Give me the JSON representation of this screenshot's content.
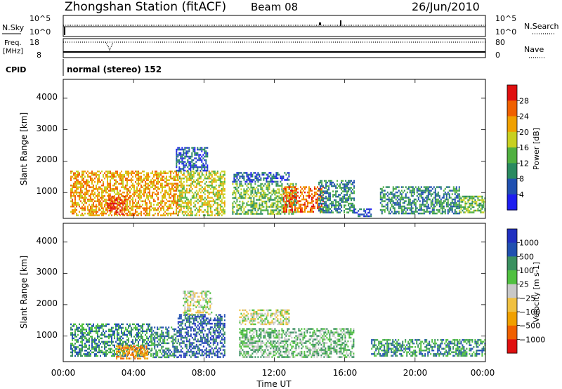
{
  "header": {
    "station": "Zhongshan Station (fitACF)",
    "beam": "Beam 08",
    "date": "26/Jun/2010"
  },
  "status_panels": {
    "nsky_label": "N.Sky",
    "nsearch_label": "N.Search",
    "freq_label_line1": "Freq.",
    "freq_label_line2": "[MHz]",
    "nave_label": "Nave",
    "cpid_label": "CPID",
    "cpid_text": "normal (stereo) 152",
    "nsky_ticks": [
      "10^5",
      "10^0"
    ],
    "nsearch_ticks": [
      "10^5",
      "10^0"
    ],
    "freq_ticks": [
      "18",
      "8"
    ],
    "nave_ticks": [
      "80",
      "0"
    ]
  },
  "axes": {
    "xlabel": "Time UT",
    "x_ticks": [
      "00:00",
      "04:00",
      "08:00",
      "12:00",
      "16:00",
      "20:00",
      "00:00"
    ],
    "ylabel": "Slant Range [km]",
    "y_ticks": [
      "4000",
      "3000",
      "2000",
      "1000"
    ]
  },
  "chart_data": [
    {
      "type": "heatmap",
      "title": "",
      "xlabel": "",
      "ylabel": "Slant Range [km]",
      "x_unit": "hours UT",
      "xlim": [
        0,
        24
      ],
      "ylim": [
        180,
        4600
      ],
      "colorbar": {
        "label": "Power [dB]",
        "ticks": [
          "28",
          "24",
          "20",
          "16",
          "12",
          "8",
          "4"
        ],
        "colors": [
          "#1e1ef0",
          "#2050b0",
          "#2a8a60",
          "#50b040",
          "#c8d020",
          "#f0a000",
          "#f06000",
          "#e01010"
        ]
      },
      "regions": [
        {
          "x0": 0.4,
          "x1": 6.5,
          "y0": 300,
          "y1": 1700,
          "level": 5
        },
        {
          "x0": 2.5,
          "x1": 3.5,
          "y0": 300,
          "y1": 900,
          "level": 7
        },
        {
          "x0": 6.5,
          "x1": 9.2,
          "y0": 300,
          "y1": 1700,
          "level": 4
        },
        {
          "x0": 6.4,
          "x1": 8.2,
          "y0": 1700,
          "y1": 2450,
          "level": 1
        },
        {
          "x0": 9.6,
          "x1": 12.8,
          "y0": 1350,
          "y1": 1650,
          "level": 1
        },
        {
          "x0": 9.6,
          "x1": 13.2,
          "y0": 300,
          "y1": 1300,
          "level": 3
        },
        {
          "x0": 12.5,
          "x1": 14.8,
          "y0": 400,
          "y1": 1200,
          "level": 6
        },
        {
          "x0": 14.5,
          "x1": 16.5,
          "y0": 350,
          "y1": 1400,
          "level": 2
        },
        {
          "x0": 16.5,
          "x1": 17.5,
          "y0": 250,
          "y1": 500,
          "level": 1
        },
        {
          "x0": 18.0,
          "x1": 22.5,
          "y0": 350,
          "y1": 1200,
          "level": 2
        },
        {
          "x0": 22.5,
          "x1": 24.0,
          "y0": 350,
          "y1": 900,
          "level": 3
        }
      ]
    },
    {
      "type": "heatmap",
      "title": "",
      "xlabel": "Time UT",
      "ylabel": "Slant Range [km]",
      "x_unit": "hours UT",
      "xlim": [
        0,
        24
      ],
      "ylim": [
        180,
        4600
      ],
      "colorbar": {
        "label": "Velocity [m s-1]",
        "ticks": [
          "1000",
          "500",
          "100",
          "25",
          "−25",
          "−100",
          "−500",
          "−1000"
        ],
        "colors": [
          "#e01010",
          "#f06000",
          "#f0a000",
          "#f0c040",
          "#c8c8c8",
          "#50c040",
          "#3a9060",
          "#2050b0",
          "#2030c0"
        ]
      },
      "regions": [
        {
          "x0": 0.4,
          "x1": 5.0,
          "y0": 350,
          "y1": 1400,
          "level": 6
        },
        {
          "x0": 3.0,
          "x1": 4.8,
          "y0": 300,
          "y1": 700,
          "level": 2
        },
        {
          "x0": 5.0,
          "x1": 6.5,
          "y0": 300,
          "y1": 1300,
          "level": 6
        },
        {
          "x0": 6.5,
          "x1": 9.2,
          "y0": 350,
          "y1": 1700,
          "level": 7
        },
        {
          "x0": 6.8,
          "x1": 8.4,
          "y0": 1700,
          "y1": 2450,
          "level": 4
        },
        {
          "x0": 10.0,
          "x1": 12.8,
          "y0": 1400,
          "y1": 1850,
          "level": 4
        },
        {
          "x0": 10.0,
          "x1": 16.5,
          "y0": 350,
          "y1": 1250,
          "level": 5
        },
        {
          "x0": 17.5,
          "x1": 22.5,
          "y0": 350,
          "y1": 900,
          "level": 6
        },
        {
          "x0": 22.5,
          "x1": 24.0,
          "y0": 350,
          "y1": 900,
          "level": 6
        }
      ]
    }
  ]
}
